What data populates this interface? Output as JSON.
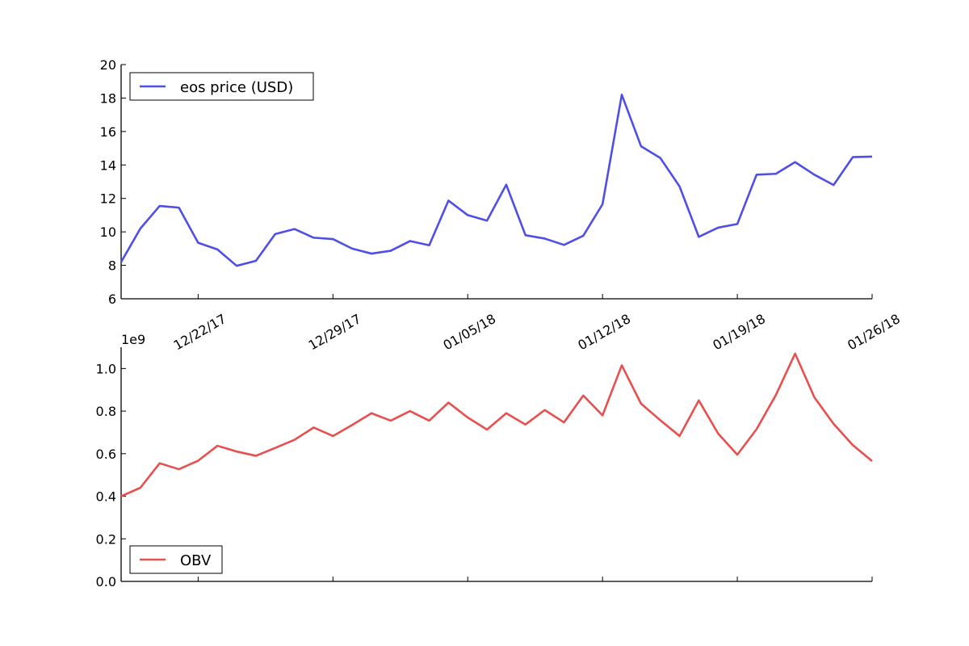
{
  "chart_data": [
    {
      "type": "line",
      "title": "",
      "xlabel": "",
      "ylabel": "",
      "ylim": [
        6,
        20
      ],
      "yticks": [
        "6",
        "8",
        "10",
        "12",
        "14",
        "16",
        "18",
        "20"
      ],
      "xticks": [
        {
          "label": "12/22/17",
          "date": "2017-12-22"
        },
        {
          "label": "12/29/17",
          "date": "2017-12-29"
        },
        {
          "label": "01/05/18",
          "date": "2018-01-05"
        },
        {
          "label": "01/12/18",
          "date": "2018-01-12"
        },
        {
          "label": "01/19/18",
          "date": "2018-01-19"
        },
        {
          "label": "01/26/18",
          "date": "2018-01-26"
        }
      ],
      "xlim": [
        "2017-12-18",
        "2018-01-26"
      ],
      "legend": "top-left",
      "grid": false,
      "series": [
        {
          "name": "eos price (USD)",
          "color": "#4f4fe8",
          "x": [
            "2017-12-18",
            "2017-12-19",
            "2017-12-20",
            "2017-12-21",
            "2017-12-22",
            "2017-12-23",
            "2017-12-24",
            "2017-12-25",
            "2017-12-26",
            "2017-12-27",
            "2017-12-28",
            "2017-12-29",
            "2017-12-30",
            "2017-12-31",
            "2018-01-01",
            "2018-01-02",
            "2018-01-03",
            "2018-01-04",
            "2018-01-05",
            "2018-01-06",
            "2018-01-07",
            "2018-01-08",
            "2018-01-09",
            "2018-01-10",
            "2018-01-11",
            "2018-01-12",
            "2018-01-13",
            "2018-01-14",
            "2018-01-15",
            "2018-01-16",
            "2018-01-17",
            "2018-01-18",
            "2018-01-19",
            "2018-01-20",
            "2018-01-21",
            "2018-01-22",
            "2018-01-23",
            "2018-01-24",
            "2018-01-25",
            "2018-01-26"
          ],
          "values": [
            8.2,
            10.2,
            11.55,
            11.45,
            9.35,
            8.95,
            7.97,
            8.27,
            9.87,
            10.17,
            9.65,
            9.57,
            9.0,
            8.7,
            8.87,
            9.45,
            9.2,
            11.87,
            11.0,
            10.67,
            12.82,
            9.8,
            9.6,
            9.22,
            9.77,
            11.65,
            18.2,
            15.12,
            14.42,
            12.72,
            9.7,
            10.25,
            10.47,
            13.42,
            13.47,
            14.17,
            13.42,
            12.8,
            14.47,
            14.5
          ]
        }
      ]
    },
    {
      "type": "line",
      "title": "",
      "xlabel": "",
      "ylabel": "",
      "scale_label": "1e9",
      "ylim": [
        0,
        1.1
      ],
      "yticks": [
        "0.0",
        "0.2",
        "0.4",
        "0.6",
        "0.8",
        "1.0"
      ],
      "xlim": [
        "2017-12-18",
        "2018-01-26"
      ],
      "legend": "bottom-left",
      "grid": false,
      "series": [
        {
          "name": "OBV",
          "color": "#e84f4f",
          "x": [
            "2017-12-18",
            "2017-12-19",
            "2017-12-20",
            "2017-12-21",
            "2017-12-22",
            "2017-12-23",
            "2017-12-24",
            "2017-12-25",
            "2017-12-26",
            "2017-12-27",
            "2017-12-28",
            "2017-12-29",
            "2017-12-30",
            "2017-12-31",
            "2018-01-01",
            "2018-01-02",
            "2018-01-03",
            "2018-01-04",
            "2018-01-05",
            "2018-01-06",
            "2018-01-07",
            "2018-01-08",
            "2018-01-09",
            "2018-01-10",
            "2018-01-11",
            "2018-01-12",
            "2018-01-13",
            "2018-01-14",
            "2018-01-15",
            "2018-01-16",
            "2018-01-17",
            "2018-01-18",
            "2018-01-19",
            "2018-01-20",
            "2018-01-21",
            "2018-01-22",
            "2018-01-23",
            "2018-01-24",
            "2018-01-25",
            "2018-01-26"
          ],
          "values": [
            0.4,
            0.44,
            0.555,
            0.527,
            0.567,
            0.637,
            0.61,
            0.59,
            0.627,
            0.665,
            0.723,
            0.683,
            0.735,
            0.79,
            0.755,
            0.8,
            0.755,
            0.84,
            0.77,
            0.713,
            0.79,
            0.737,
            0.805,
            0.747,
            0.873,
            0.78,
            1.015,
            0.835,
            0.757,
            0.683,
            0.85,
            0.695,
            0.595,
            0.715,
            0.875,
            1.07,
            0.865,
            0.74,
            0.64,
            0.565
          ]
        }
      ]
    }
  ]
}
